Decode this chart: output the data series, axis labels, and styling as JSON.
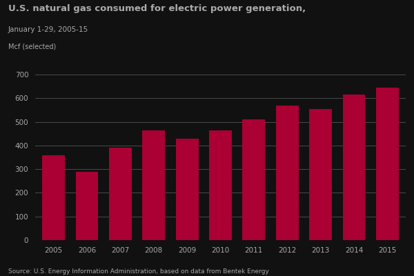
{
  "title": "U.S. natural gas consumed for electric power generation,",
  "subtitle": "January 1-29, 2005-15",
  "ylabel": "Mcf (selected)",
  "years": [
    "2005",
    "2006",
    "2007",
    "2008",
    "2009",
    "2010",
    "2011",
    "2012",
    "2013",
    "2014",
    "2015"
  ],
  "values": [
    360,
    290,
    390,
    465,
    430,
    465,
    510,
    570,
    555,
    615,
    645
  ],
  "bar_color": "#AA0033",
  "background_color": "#111111",
  "text_color": "#aaaaaa",
  "grid_color": "#555555",
  "ylim": [
    0,
    700
  ],
  "yticks": [
    0,
    100,
    200,
    300,
    400,
    500,
    600,
    700
  ],
  "source_text": "Source: U.S. Energy Information Administration, based on data from Bentek Energy",
  "title_fontsize": 9.5,
  "subtitle_fontsize": 7.5,
  "ylabel_fontsize": 7,
  "tick_fontsize": 7.5,
  "source_fontsize": 6.5
}
